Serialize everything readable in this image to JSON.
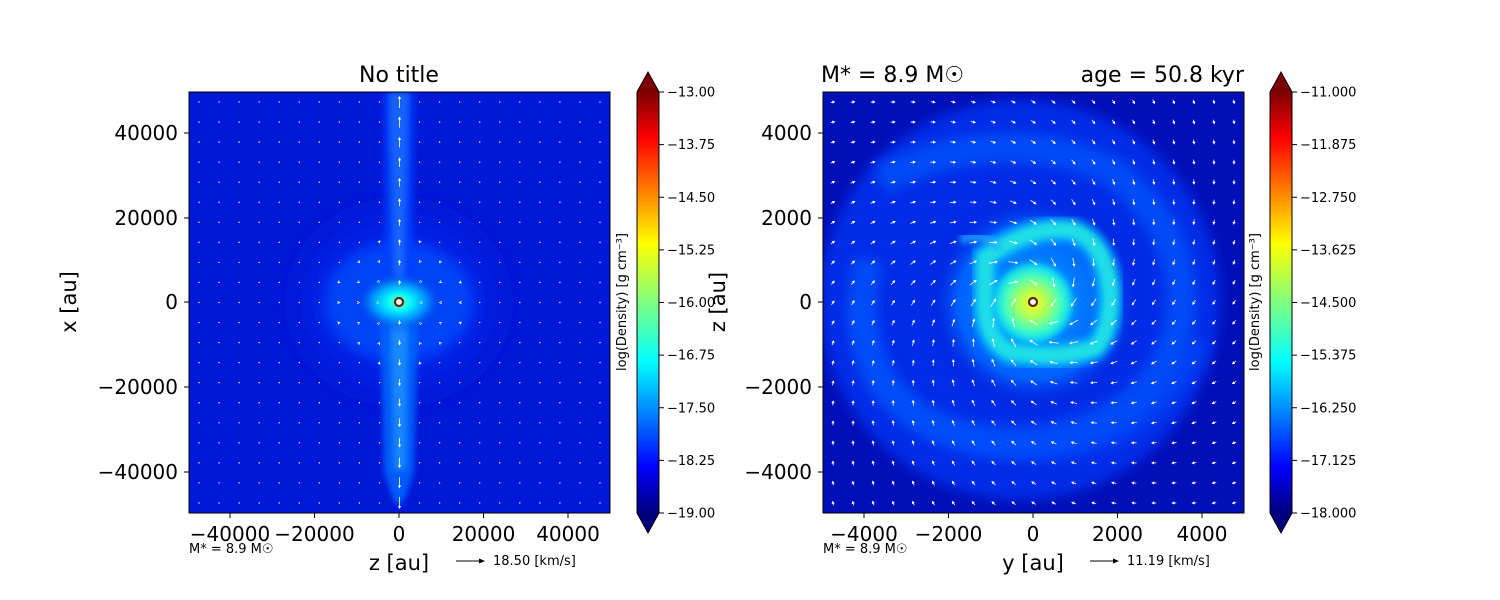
{
  "panels": [
    {
      "title": "No title",
      "title_right": "",
      "xlabel": "z [au]",
      "ylabel": "x [au]",
      "xticks": [
        "−40000",
        "−20000",
        "0",
        "20000",
        "40000"
      ],
      "yticks": [
        "40000",
        "20000",
        "0",
        "−20000",
        "−40000"
      ],
      "mass_note": "M* = 8.9 M☉",
      "arrow_label": "18.50 [km/s]",
      "cbar_label": "log(Density) [g cm⁻³]",
      "cbar_ticks": [
        "−13.00",
        "−13.75",
        "−14.50",
        "−15.25",
        "−16.00",
        "−16.75",
        "−17.50",
        "−18.25",
        "−19.00"
      ]
    },
    {
      "title": "M* = 8.9 M☉",
      "title_right": "age = 50.8 kyr",
      "xlabel": "y [au]",
      "ylabel": "z [au]",
      "xticks": [
        "−4000",
        "−2000",
        "0",
        "2000",
        "4000"
      ],
      "yticks": [
        "4000",
        "2000",
        "0",
        "−2000",
        "−4000"
      ],
      "mass_note": "M* = 8.9 M☉",
      "arrow_label": "11.19 [km/s]",
      "cbar_label": "log(Density) [g cm⁻³]",
      "cbar_ticks": [
        "−11.000",
        "−11.875",
        "−12.750",
        "−13.625",
        "−14.500",
        "−15.375",
        "−16.250",
        "−17.125",
        "−18.000"
      ]
    }
  ],
  "chart_data": [
    {
      "type": "heatmap",
      "title": "No title",
      "xlabel": "z [au]",
      "ylabel": "x [au]",
      "xlim": [
        -50000,
        50000
      ],
      "ylim": [
        -50000,
        50000
      ],
      "colorbar": {
        "label": "log(Density) [g cm⁻³]",
        "range": [
          -19.0,
          -13.0
        ],
        "colormap": "jet"
      },
      "reference_velocity_kms": 18.5,
      "stellar_mass_msun": 8.9,
      "star_position": [
        0,
        0
      ],
      "features": [
        "bipolar outflow cavity along x axis",
        "dense core at origin"
      ]
    },
    {
      "type": "heatmap",
      "title": "M* = 8.9 M☉",
      "title_right": "age = 50.8 kyr",
      "xlabel": "y [au]",
      "ylabel": "z [au]",
      "xlim": [
        -5000,
        5000
      ],
      "ylim": [
        -5000,
        5000
      ],
      "colorbar": {
        "label": "log(Density) [g cm⁻³]",
        "range": [
          -18.0,
          -11.0
        ],
        "colormap": "jet"
      },
      "reference_velocity_kms": 11.19,
      "stellar_mass_msun": 8.9,
      "age_kyr": 50.8,
      "star_position": [
        0,
        0
      ],
      "features": [
        "ring-like disk structure",
        "spiral arms",
        "dense core at origin"
      ]
    }
  ]
}
